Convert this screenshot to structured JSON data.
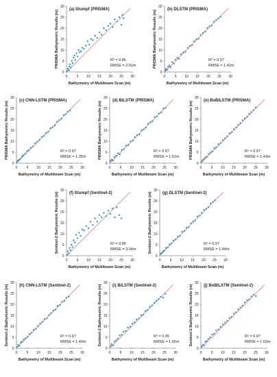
{
  "colors": {
    "point": "#2e93c8",
    "fit_line": "#f08080",
    "axis": "#8a8a8a",
    "text": "#222222"
  },
  "common": {
    "xlabel": "Bathymetry of Multibeam Scan (m)",
    "xlim": [
      0,
      30
    ],
    "ylim": [
      0,
      30
    ],
    "xticks": [
      "0",
      "5",
      "10",
      "15",
      "20",
      "25",
      "30"
    ],
    "yticks": [
      "0",
      "5",
      "10",
      "15",
      "20",
      "25",
      "30"
    ]
  },
  "chart_data": [
    {
      "type": "scatter",
      "title": "(a) Stumpf (PRISMA)",
      "ylabel": "PRISMA Bathymetric Results (m)",
      "xlabel": "Bathymetry of Multibeam Scan (m)",
      "xlim": [
        0,
        30
      ],
      "ylim": [
        0,
        30
      ],
      "r2": "R² = 0.86",
      "rmse": "RMSE = 2.91m",
      "x": [
        0.3,
        0.6,
        1.0,
        1.3,
        1.6,
        2.0,
        2.4,
        2.8,
        3.2,
        3.6,
        4.0,
        4.5,
        5.0,
        5.5,
        6.0,
        6.6,
        7.2,
        8.0,
        8.8,
        9.6,
        10.4,
        11.2,
        12.0,
        13.0,
        14.0,
        15.0,
        16.0,
        17.0,
        18.0,
        19.0,
        20.0,
        21.0,
        22.0,
        23.0,
        24.0,
        25.0,
        25.5,
        26.0
      ],
      "y": [
        0.5,
        1.5,
        0.8,
        2.5,
        3.5,
        2.0,
        5.0,
        4.0,
        6.5,
        7.5,
        5.5,
        8.5,
        7.0,
        10.0,
        9.0,
        9.5,
        11.0,
        10.5,
        12.0,
        14.0,
        12.5,
        15.0,
        14.5,
        16.5,
        15.5,
        18.0,
        17.0,
        20.0,
        19.0,
        21.0,
        22.0,
        20.5,
        24.0,
        23.0,
        25.0,
        21.5,
        26.0,
        24.5
      ]
    },
    {
      "type": "scatter",
      "title": "(b) DLSTM (PRISMA)",
      "ylabel": "PRISMA Bathymetric Results (m)",
      "xlabel": "Bathymetry of Multibeam Scan (m)",
      "xlim": [
        0,
        30
      ],
      "ylim": [
        0,
        30
      ],
      "r2": "R² = 0.97",
      "rmse": "RMSE = 1.42m",
      "x": [
        0.3,
        0.7,
        1.1,
        1.6,
        2.2,
        2.8,
        3.5,
        4.2,
        5.0,
        5.8,
        6.6,
        7.5,
        8.5,
        9.5,
        10.5,
        11.5,
        12.5,
        13.5,
        14.5,
        15.5,
        16.5,
        17.5,
        18.5,
        19.5,
        20.5,
        21.5,
        22.5,
        23.5,
        24.5,
        25.5
      ],
      "y": [
        0.8,
        1.5,
        0.9,
        2.4,
        3.0,
        2.2,
        4.5,
        3.8,
        5.6,
        6.5,
        6.0,
        8.1,
        8.9,
        9.2,
        11.0,
        11.8,
        12.2,
        14.0,
        14.9,
        15.2,
        16.9,
        17.8,
        18.4,
        20.1,
        20.8,
        21.2,
        22.9,
        23.6,
        24.3,
        25.1
      ]
    },
    {
      "type": "scatter",
      "title": "(c) CNN-LSTM (PRISMA)",
      "ylabel": "PRISMA Bathymetric Results (m)",
      "xlabel": "Bathymetry of Multibeam Scan (m)",
      "xlim": [
        0,
        30
      ],
      "ylim": [
        0,
        30
      ],
      "r2": "R² = 0.97",
      "rmse": "RMSE = 1.35m",
      "x": [
        0.3,
        0.7,
        1.2,
        1.8,
        2.5,
        3.2,
        4.0,
        4.8,
        5.6,
        6.5,
        7.5,
        8.5,
        9.5,
        10.5,
        11.5,
        12.5,
        13.5,
        14.5,
        15.5,
        16.5,
        17.5,
        18.5,
        19.5,
        20.5,
        21.5,
        22.5,
        23.5,
        24.5
      ],
      "y": [
        0.6,
        1.2,
        1.5,
        2.0,
        3.1,
        3.6,
        4.4,
        5.5,
        5.9,
        7.0,
        7.6,
        9.0,
        9.8,
        10.6,
        11.9,
        12.4,
        13.7,
        14.3,
        15.9,
        16.4,
        17.2,
        18.9,
        19.6,
        20.2,
        21.9,
        22.3,
        23.4,
        24.0
      ]
    },
    {
      "type": "scatter",
      "title": "(d) BiLSTM (PRISMA)",
      "ylabel": "PRISMA Bathymetric Results (m)",
      "xlabel": "Bathymetry of Multibeam Scan (m)",
      "xlim": [
        0,
        30
      ],
      "ylim": [
        0,
        30
      ],
      "r2": "R² = 0.97",
      "rmse": "RMSE = 1.51m",
      "x": [
        0.4,
        0.9,
        1.5,
        2.2,
        3.0,
        3.8,
        4.6,
        5.5,
        6.5,
        7.5,
        8.5,
        9.5,
        10.5,
        11.5,
        12.5,
        13.5,
        14.5,
        15.5,
        16.5,
        17.5,
        18.5,
        19.5,
        20.5,
        21.5,
        22.5,
        23.5,
        24.5,
        25.5
      ],
      "y": [
        1.0,
        1.6,
        1.2,
        2.8,
        3.4,
        4.5,
        4.0,
        6.0,
        6.4,
        8.0,
        8.2,
        9.9,
        10.2,
        11.9,
        12.8,
        13.1,
        15.0,
        15.4,
        16.2,
        17.9,
        18.6,
        19.1,
        21.0,
        21.3,
        22.6,
        23.1,
        24.9,
        25.2
      ]
    },
    {
      "type": "scatter",
      "title": "(e) BoBiLSTM (PRISMA)",
      "ylabel": "PRISMA Bathymetric Results (m)",
      "xlabel": "Bathymetry of Multibeam Scan (m)",
      "xlim": [
        0,
        30
      ],
      "ylim": [
        0,
        30
      ],
      "r2": "R² = 0.97",
      "rmse": "RMSE = 1.43m",
      "x": [
        0.3,
        0.8,
        1.4,
        2.0,
        2.7,
        3.5,
        4.3,
        5.2,
        6.1,
        7.0,
        8.0,
        9.0,
        10.0,
        11.0,
        12.0,
        13.0,
        14.0,
        15.0,
        16.0,
        17.0,
        18.0,
        19.0,
        20.0,
        21.0,
        22.0,
        23.0,
        24.0,
        25.0
      ],
      "y": [
        0.7,
        1.4,
        1.9,
        2.6,
        2.9,
        4.2,
        4.9,
        5.4,
        6.8,
        7.3,
        8.6,
        9.2,
        10.5,
        11.4,
        12.2,
        13.6,
        14.1,
        15.5,
        16.3,
        17.4,
        18.2,
        19.6,
        20.4,
        21.1,
        22.5,
        23.3,
        24.2,
        25.4
      ]
    },
    {
      "type": "scatter",
      "title": "(f) Stumpf (Sentinel-2)",
      "ylabel": "Sentinel-2 Bathymetric Results (m)",
      "xlabel": "Bathymetry of Multibeam Scan (m)",
      "xlim": [
        0,
        30
      ],
      "ylim": [
        0,
        30
      ],
      "r2": "R² = 0.86",
      "rmse": "RMSE = 3.04m",
      "x": [
        0.3,
        0.6,
        1.0,
        1.4,
        1.8,
        2.2,
        2.7,
        3.2,
        3.8,
        4.4,
        5.0,
        5.7,
        6.4,
        7.2,
        8.0,
        9.0,
        10.0,
        11.0,
        12.0,
        13.0,
        14.0,
        15.0,
        16.0,
        17.0,
        18.0,
        19.0,
        20.0,
        21.0,
        22.0,
        23.0,
        24.0,
        25.0
      ],
      "y": [
        0.5,
        2.0,
        1.0,
        3.5,
        2.5,
        5.0,
        4.0,
        7.0,
        6.0,
        9.5,
        8.0,
        10.5,
        9.0,
        12.0,
        11.5,
        13.5,
        12.5,
        15.5,
        14.0,
        17.0,
        15.5,
        18.5,
        17.5,
        19.5,
        18.0,
        20.5,
        19.0,
        21.5,
        17.5,
        22.0,
        18.5,
        17.0
      ]
    },
    {
      "type": "scatter",
      "title": "(g) DLSTM (Sentinel-2)",
      "ylabel": "Sentinel-2 Bathymetric Results (m)",
      "xlabel": "Bathymetry of Multibeam Scan (m)",
      "xlim": [
        0,
        30
      ],
      "ylim": [
        0,
        30
      ],
      "r2": "R² = 0.97",
      "rmse": "RMSE = 1.44m",
      "x": [
        0.4,
        0.9,
        1.5,
        2.1,
        2.8,
        3.6,
        4.4,
        5.3,
        6.2,
        7.2,
        8.2,
        9.2,
        10.2,
        11.2,
        12.2,
        13.2,
        14.2,
        15.2,
        16.2,
        17.2,
        18.2,
        19.2,
        20.2,
        21.2,
        22.2,
        23.2,
        24.2,
        25.2
      ],
      "y": [
        0.9,
        1.3,
        2.0,
        2.4,
        3.5,
        3.9,
        5.1,
        5.6,
        6.9,
        7.4,
        8.6,
        9.0,
        10.9,
        11.3,
        12.7,
        13.0,
        14.8,
        15.6,
        16.1,
        17.9,
        18.3,
        19.5,
        20.9,
        21.4,
        22.1,
        23.8,
        24.5,
        25.3
      ]
    },
    {
      "type": "scatter",
      "title": "(h) CNN-LSTM (Sentinel-2)",
      "ylabel": "Sentinel-2 Bathymetric Results (m)",
      "xlabel": "Bathymetry of Multibeam Scan (m)",
      "xlim": [
        0,
        30
      ],
      "ylim": [
        0,
        30
      ],
      "r2": "R² = 0.97",
      "rmse": "RMSE = 1.40m",
      "x": [
        0.3,
        0.8,
        1.3,
        1.9,
        2.6,
        3.3,
        4.1,
        5.0,
        5.9,
        6.8,
        7.8,
        8.8,
        9.8,
        10.8,
        11.8,
        12.8,
        13.8,
        14.8,
        15.8,
        16.8,
        17.8,
        18.8,
        19.8,
        20.8,
        21.8,
        22.8,
        23.8
      ],
      "y": [
        0.6,
        1.5,
        1.1,
        2.6,
        3.0,
        3.9,
        4.6,
        5.2,
        6.5,
        7.1,
        8.4,
        8.9,
        10.1,
        11.2,
        12.0,
        13.3,
        13.6,
        15.1,
        16.0,
        17.2,
        17.6,
        19.3,
        19.7,
        21.1,
        21.6,
        23.0,
        23.5
      ]
    },
    {
      "type": "scatter",
      "title": "(i) BiLSTM (Sentinel-2)",
      "ylabel": "Sentinel-2 Bathymetric Results (m)",
      "xlabel": "Bathymetry of Multibeam Scan (m)",
      "xlim": [
        0,
        30
      ],
      "ylim": [
        0,
        30
      ],
      "r2": "R² = 0.95",
      "rmse": "RMSE = 1.65m",
      "x": [
        0.4,
        0.9,
        1.5,
        2.2,
        2.9,
        3.7,
        4.5,
        5.4,
        6.3,
        7.3,
        8.3,
        9.3,
        10.3,
        11.3,
        12.3,
        13.3,
        14.3,
        15.3,
        16.3,
        17.3,
        18.3,
        19.3,
        20.3,
        21.3,
        22.3,
        23.3,
        24.3,
        25.3
      ],
      "y": [
        1.0,
        1.8,
        1.3,
        3.0,
        3.6,
        4.4,
        5.8,
        6.1,
        7.5,
        7.9,
        9.4,
        9.8,
        11.2,
        11.8,
        13.1,
        13.6,
        15.0,
        15.3,
        17.0,
        17.4,
        18.9,
        19.5,
        20.7,
        21.6,
        22.4,
        23.5,
        23.1,
        24.8
      ]
    },
    {
      "type": "scatter",
      "title": "(j) BoBiLSTM (Sentinel-2)",
      "ylabel": "Sentinel-2 Bathymetric Results (m)",
      "xlabel": "Bathymetry of Multibeam Scan (m)",
      "xlim": [
        0,
        30
      ],
      "ylim": [
        0,
        30
      ],
      "r2": "R² = 0.97",
      "rmse": "RMSE = 1.63m",
      "x": [
        0.3,
        0.8,
        1.4,
        2.0,
        2.7,
        3.4,
        4.2,
        5.1,
        6.0,
        7.0,
        8.0,
        9.0,
        10.0,
        11.0,
        12.0,
        13.0,
        14.0,
        15.0,
        16.0,
        17.0,
        18.0,
        19.0,
        20.0,
        21.0,
        22.0,
        23.0,
        24.0,
        25.0
      ],
      "y": [
        0.8,
        1.6,
        1.2,
        2.9,
        3.3,
        4.3,
        5.0,
        6.2,
        6.6,
        8.1,
        8.6,
        9.7,
        10.8,
        11.6,
        12.4,
        13.8,
        14.3,
        15.8,
        16.4,
        17.7,
        18.6,
        19.4,
        20.9,
        21.8,
        22.2,
        23.6,
        24.4,
        23.8
      ]
    }
  ]
}
